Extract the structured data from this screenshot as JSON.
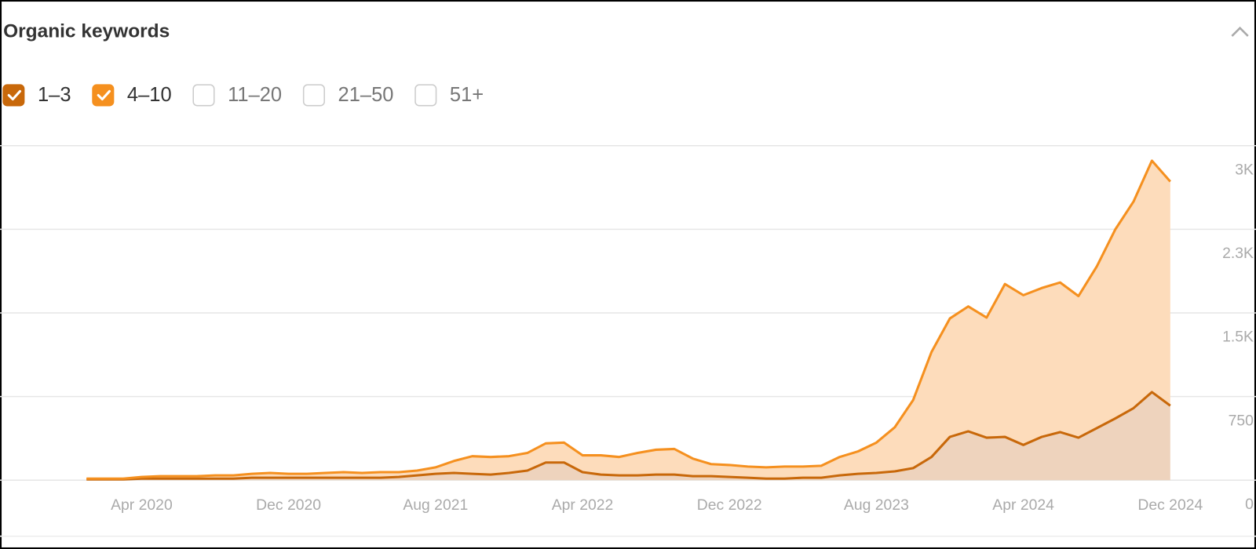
{
  "chart_data": {
    "type": "stacked-area",
    "title": "Organic keywords",
    "categories": [
      null,
      null,
      null,
      "Apr 2020",
      null,
      null,
      null,
      null,
      null,
      null,
      null,
      "Dec 2020",
      null,
      null,
      null,
      null,
      null,
      null,
      null,
      "Aug 2021",
      null,
      null,
      null,
      null,
      null,
      null,
      null,
      "Apr 2022",
      null,
      null,
      null,
      null,
      null,
      null,
      null,
      "Dec 2022",
      null,
      null,
      null,
      null,
      null,
      null,
      null,
      "Aug 2023",
      null,
      null,
      null,
      null,
      null,
      null,
      null,
      "Apr 2024",
      null,
      null,
      null,
      null,
      null,
      null,
      null,
      "Dec 2024"
    ],
    "series": [
      {
        "name": "1–3",
        "color": "#c8680a",
        "fill": "#eed3bd",
        "values": [
          7,
          7,
          7,
          14,
          14,
          14,
          14,
          14,
          14,
          22,
          22,
          22,
          22,
          22,
          22,
          22,
          22,
          29,
          43,
          57,
          65,
          57,
          50,
          65,
          86,
          158,
          158,
          72,
          50,
          43,
          43,
          50,
          50,
          36,
          36,
          29,
          22,
          14,
          14,
          22,
          22,
          43,
          57,
          65,
          79,
          108,
          208,
          388,
          438,
          381,
          388,
          316,
          388,
          431,
          381,
          467,
          553,
          646,
          790,
          668
        ]
      },
      {
        "name": "4–10",
        "color": "#f5901f",
        "fill": "#fddcbb",
        "values": [
          7,
          7,
          7,
          15,
          22,
          22,
          22,
          29,
          29,
          35,
          43,
          35,
          35,
          43,
          50,
          43,
          50,
          43,
          43,
          58,
          107,
          158,
          158,
          150,
          158,
          172,
          179,
          151,
          173,
          165,
          201,
          223,
          230,
          158,
          108,
          107,
          100,
          101,
          108,
          100,
          107,
          165,
          201,
          272,
          395,
          610,
          941,
          1062,
          1120,
          1077,
          1371,
          1343,
          1335,
          1342,
          1270,
          1450,
          1694,
          1853,
          2075,
          2010
        ]
      }
    ],
    "unchecked_series": [
      "11–20",
      "21–50",
      "51+"
    ],
    "ylim": [
      0,
      3000
    ],
    "yticks": [
      0,
      750,
      {
        "value": 1500,
        "label": "1.5K"
      },
      {
        "value": 2250,
        "label": "2.3K"
      },
      {
        "value": 3000,
        "label": "3K"
      }
    ],
    "grid": true
  }
}
